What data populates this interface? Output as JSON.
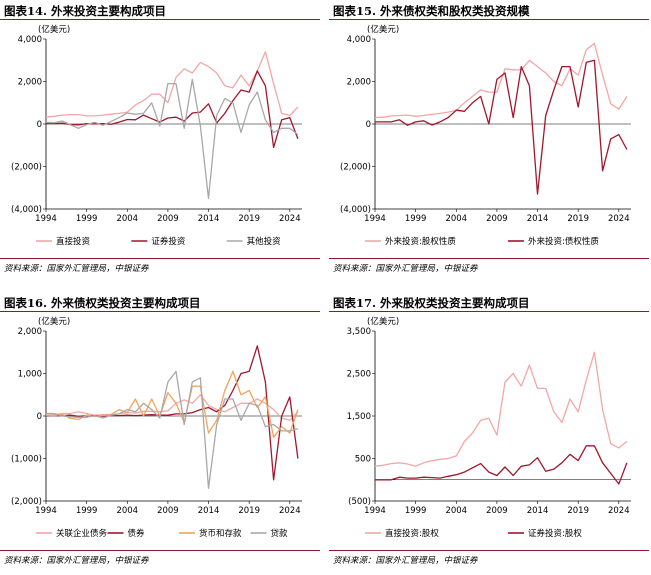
{
  "source_label": "资料来源：国家外汇管理局，中银证券",
  "chart_data": [
    {
      "title": "图表14. 外来投资主要构成项目",
      "type": "line",
      "ylabel": "(亿美元)",
      "ylim": [
        -4000,
        4000
      ],
      "yticks": [
        -4000,
        -2000,
        0,
        2000,
        4000
      ],
      "ytick_labels": [
        "(4,000)",
        "(2,000)",
        "0",
        "2,000",
        "4,000"
      ],
      "xlim": [
        1994,
        2025.5
      ],
      "xticks": [
        "1994",
        "1999",
        "2004",
        "2009",
        "2014",
        "2019",
        "2024"
      ],
      "series": [
        {
          "name": "直接投资",
          "color": "#f2a7a7",
          "x": [
            1994,
            1995,
            1996,
            1997,
            1998,
            1999,
            2000,
            2001,
            2002,
            2003,
            2004,
            2005,
            2006,
            2007,
            2008,
            2009,
            2010,
            2011,
            2012,
            2013,
            2014,
            2015,
            2016,
            2017,
            2018,
            2019,
            2020,
            2021,
            2022,
            2023,
            2024,
            2025
          ],
          "values": [
            320,
            360,
            420,
            440,
            440,
            380,
            380,
            420,
            460,
            500,
            560,
            900,
            1100,
            1400,
            1400,
            1000,
            2200,
            2600,
            2400,
            2900,
            2700,
            2400,
            1800,
            1700,
            2300,
            1800,
            2500,
            3400,
            1900,
            500,
            400,
            800
          ]
        },
        {
          "name": "证券投资",
          "color": "#a0172e",
          "x": [
            1994,
            1995,
            1996,
            1997,
            1998,
            1999,
            2000,
            2001,
            2002,
            2003,
            2004,
            2005,
            2006,
            2007,
            2008,
            2009,
            2010,
            2011,
            2012,
            2013,
            2014,
            2015,
            2016,
            2017,
            2018,
            2019,
            2020,
            2021,
            2022,
            2023,
            2024,
            2025
          ],
          "values": [
            30,
            20,
            40,
            -30,
            -40,
            20,
            10,
            20,
            -10,
            90,
            210,
            200,
            420,
            250,
            90,
            280,
            320,
            140,
            520,
            560,
            950,
            50,
            500,
            1100,
            1600,
            1500,
            2500,
            1800,
            -1100,
            200,
            300,
            -700
          ]
        },
        {
          "name": "其他投资",
          "color": "#a8a8a8",
          "x": [
            1994,
            1995,
            1996,
            1997,
            1998,
            1999,
            2000,
            2001,
            2002,
            2003,
            2004,
            2005,
            2006,
            2007,
            2008,
            2009,
            2010,
            2011,
            2012,
            2013,
            2014,
            2015,
            2016,
            2017,
            2018,
            2019,
            2020,
            2021,
            2022,
            2023,
            2024,
            2025
          ],
          "values": [
            80,
            60,
            140,
            -40,
            -200,
            -30,
            80,
            -60,
            120,
            300,
            520,
            460,
            500,
            1000,
            -100,
            1900,
            1900,
            -200,
            2100,
            -100,
            -3500,
            400,
            1200,
            1000,
            -400,
            900,
            1500,
            200,
            -400,
            -200,
            -200,
            -500
          ]
        }
      ]
    },
    {
      "title": "图表15. 外来债权类和股权类投资规模",
      "type": "line",
      "ylabel": "(亿美元)",
      "ylim": [
        -4000,
        4000
      ],
      "yticks": [
        -4000,
        -2000,
        0,
        2000,
        4000
      ],
      "ytick_labels": [
        "(4,000)",
        "(2,000)",
        "0",
        "2,000",
        "4,000"
      ],
      "xlim": [
        1994,
        2025.5
      ],
      "xticks": [
        "1994",
        "1999",
        "2004",
        "2009",
        "2014",
        "2019",
        "2024"
      ],
      "series": [
        {
          "name": "外来投资:股权性质",
          "color": "#f2a7a7",
          "x": [
            1994,
            1995,
            1996,
            1997,
            1998,
            1999,
            2000,
            2001,
            2002,
            2003,
            2004,
            2005,
            2006,
            2007,
            2008,
            2009,
            2010,
            2011,
            2012,
            2013,
            2014,
            2015,
            2016,
            2017,
            2018,
            2019,
            2020,
            2021,
            2022,
            2023,
            2024,
            2025
          ],
          "values": [
            300,
            320,
            380,
            400,
            420,
            360,
            400,
            450,
            500,
            560,
            640,
            1000,
            1300,
            1600,
            1500,
            1500,
            2600,
            2550,
            2550,
            3000,
            2700,
            2400,
            2000,
            1800,
            2600,
            2300,
            3500,
            3800,
            2300,
            950,
            700,
            1300
          ]
        },
        {
          "name": "外来投资:债权性质",
          "color": "#a0172e",
          "x": [
            1994,
            1995,
            1996,
            1997,
            1998,
            1999,
            2000,
            2001,
            2002,
            2003,
            2004,
            2005,
            2006,
            2007,
            2008,
            2009,
            2010,
            2011,
            2012,
            2013,
            2014,
            2015,
            2016,
            2017,
            2018,
            2019,
            2020,
            2021,
            2022,
            2023,
            2024,
            2025
          ],
          "values": [
            100,
            100,
            100,
            200,
            -60,
            100,
            150,
            -50,
            100,
            300,
            650,
            600,
            1000,
            1300,
            0,
            2100,
            2400,
            300,
            2700,
            1800,
            -3300,
            400,
            1600,
            2700,
            2700,
            800,
            2900,
            3000,
            -2200,
            -700,
            -500,
            -1200
          ]
        }
      ]
    },
    {
      "title": "图表16. 外来债权类投资主要构成项目",
      "type": "line",
      "ylabel": "(亿美元)",
      "ylim": [
        -2000,
        2000
      ],
      "yticks": [
        -2000,
        -1000,
        0,
        1000,
        2000
      ],
      "ytick_labels": [
        "(2,000)",
        "(1,000)",
        "0",
        "1,000",
        "2,000"
      ],
      "xlim": [
        1994,
        2025.5
      ],
      "xticks": [
        "1994",
        "1999",
        "2004",
        "2009",
        "2014",
        "2019",
        "2024"
      ],
      "series": [
        {
          "name": "关联企业债务",
          "color": "#f2a7a7",
          "x": [
            1994,
            1995,
            1996,
            1997,
            1998,
            1999,
            2000,
            2001,
            2002,
            2003,
            2004,
            2005,
            2006,
            2007,
            2008,
            2009,
            2010,
            2011,
            2012,
            2013,
            2014,
            2015,
            2016,
            2017,
            2018,
            2019,
            2020,
            2021,
            2022,
            2023,
            2024,
            2025
          ],
          "values": [
            20,
            30,
            60,
            60,
            100,
            60,
            20,
            30,
            40,
            50,
            80,
            70,
            110,
            110,
            100,
            120,
            300,
            380,
            300,
            500,
            250,
            150,
            100,
            200,
            300,
            300,
            400,
            300,
            150,
            -50,
            -100,
            100
          ]
        },
        {
          "name": "债券",
          "color": "#a0172e",
          "x": [
            1994,
            1995,
            1996,
            1997,
            1998,
            1999,
            2000,
            2001,
            2002,
            2003,
            2004,
            2005,
            2006,
            2007,
            2008,
            2009,
            2010,
            2011,
            2012,
            2013,
            2014,
            2015,
            2016,
            2017,
            2018,
            2019,
            2020,
            2021,
            2022,
            2023,
            2024,
            2025
          ],
          "values": [
            10,
            10,
            10,
            20,
            -10,
            10,
            10,
            -10,
            10,
            10,
            20,
            10,
            20,
            30,
            20,
            20,
            50,
            50,
            80,
            150,
            200,
            100,
            250,
            600,
            1000,
            1050,
            1650,
            800,
            -1500,
            0,
            450,
            -1000
          ]
        },
        {
          "name": "货币和存款",
          "color": "#f0a45c",
          "x": [
            1994,
            1995,
            1996,
            1997,
            1998,
            1999,
            2000,
            2001,
            2002,
            2003,
            2004,
            2005,
            2006,
            2007,
            2008,
            2009,
            2010,
            2011,
            2012,
            2013,
            2014,
            2015,
            2016,
            2017,
            2018,
            2019,
            2020,
            2021,
            2022,
            2023,
            2024,
            2025
          ],
          "values": [
            20,
            10,
            40,
            -60,
            -80,
            20,
            -10,
            10,
            30,
            150,
            80,
            400,
            0,
            400,
            0,
            550,
            300,
            -150,
            700,
            700,
            -400,
            -100,
            600,
            1050,
            500,
            600,
            200,
            450,
            -500,
            -250,
            -400,
            150
          ]
        },
        {
          "name": "贷款",
          "color": "#a8a8a8",
          "x": [
            1994,
            1995,
            1996,
            1997,
            1998,
            1999,
            2000,
            2001,
            2002,
            2003,
            2004,
            2005,
            2006,
            2007,
            2008,
            2009,
            2010,
            2011,
            2012,
            2013,
            2014,
            2015,
            2016,
            2017,
            2018,
            2019,
            2020,
            2021,
            2022,
            2023,
            2024,
            2025
          ],
          "values": [
            60,
            60,
            0,
            -20,
            -30,
            -30,
            10,
            -50,
            20,
            50,
            150,
            100,
            300,
            150,
            -50,
            800,
            1050,
            -200,
            800,
            900,
            -1700,
            -200,
            400,
            400,
            -100,
            300,
            250,
            -250,
            -200,
            -350,
            -350,
            -300
          ]
        }
      ]
    },
    {
      "title": "图表17. 外来股权类投资主要构成项目",
      "type": "line",
      "ylabel": "(亿美元)",
      "ylim": [
        -500,
        3500
      ],
      "yticks": [
        -500,
        500,
        1500,
        2500,
        3500
      ],
      "ytick_labels": [
        "(500)",
        "500",
        "1,500",
        "2,500",
        "3,500"
      ],
      "xlim": [
        1994,
        2025.5
      ],
      "xticks": [
        "1994",
        "1999",
        "2004",
        "2009",
        "2014",
        "2019",
        "2024"
      ],
      "series": [
        {
          "name": "直接投资:股权",
          "color": "#f2a7a7",
          "x": [
            1994,
            1995,
            1996,
            1997,
            1998,
            1999,
            2000,
            2001,
            2002,
            2003,
            2004,
            2005,
            2006,
            2007,
            2008,
            2009,
            2010,
            2011,
            2012,
            2013,
            2014,
            2015,
            2016,
            2017,
            2018,
            2019,
            2020,
            2021,
            2022,
            2023,
            2024,
            2025
          ],
          "values": [
            320,
            340,
            380,
            400,
            370,
            320,
            400,
            450,
            480,
            500,
            560,
            900,
            1100,
            1400,
            1450,
            1050,
            2300,
            2500,
            2200,
            2700,
            2150,
            2150,
            1600,
            1350,
            1900,
            1600,
            2350,
            3000,
            1650,
            850,
            750,
            900
          ]
        },
        {
          "name": "证券投资:股权",
          "color": "#a0172e",
          "x": [
            1994,
            1995,
            1996,
            1997,
            1998,
            1999,
            2000,
            2001,
            2002,
            2003,
            2004,
            2005,
            2006,
            2007,
            2008,
            2009,
            2010,
            2011,
            2012,
            2013,
            2014,
            2015,
            2016,
            2017,
            2018,
            2019,
            2020,
            2021,
            2022,
            2023,
            2024,
            2025
          ],
          "values": [
            0,
            0,
            0,
            60,
            40,
            40,
            60,
            50,
            40,
            80,
            120,
            180,
            280,
            380,
            180,
            100,
            300,
            100,
            320,
            350,
            520,
            200,
            250,
            400,
            600,
            450,
            800,
            800,
            400,
            150,
            -100,
            400
          ]
        }
      ]
    }
  ]
}
